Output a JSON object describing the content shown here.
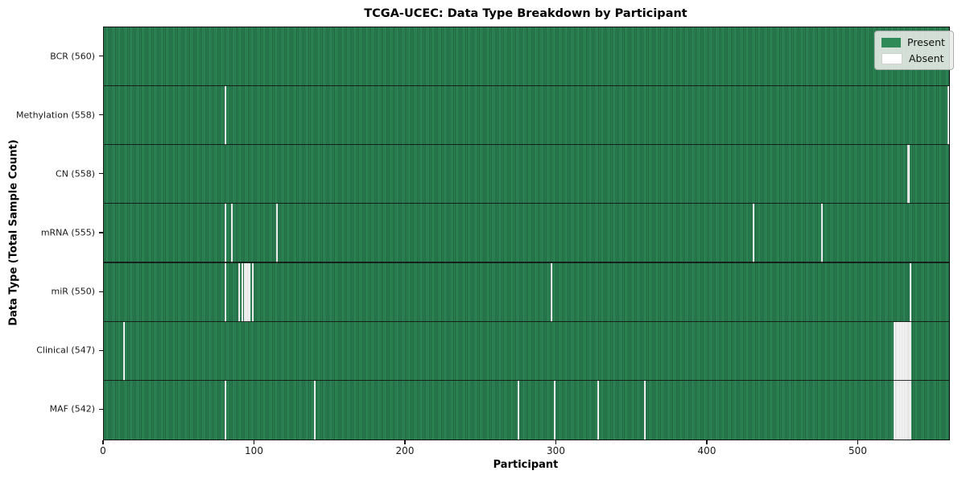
{
  "chart_data": {
    "type": "heatmap",
    "title": "TCGA-UCEC: Data Type Breakdown by Participant",
    "xlabel": "Participant",
    "ylabel": "Data Type (Total Sample Count)",
    "x_ticks": [
      0,
      100,
      200,
      300,
      400,
      500
    ],
    "xlim": [
      0,
      560
    ],
    "n_participants": 560,
    "grid": false,
    "legend_position": "upper right",
    "legend": [
      {
        "label": "Present",
        "color": "#2e8b57"
      },
      {
        "label": "Absent",
        "color": "#ffffff"
      }
    ],
    "colors": {
      "present": "#2e8b57",
      "present_edge": "#1f5f3e",
      "absent": "#ffffff",
      "absent_edge": "#bdbdbd",
      "frame": "#141414"
    },
    "rows": [
      {
        "label": "BCR (560)",
        "data_type": "BCR",
        "present_count": 560,
        "absent_participants": []
      },
      {
        "label": "Methylation (558)",
        "data_type": "Methylation",
        "present_count": 558,
        "absent_participants": [
          80,
          559
        ]
      },
      {
        "label": "CN (558)",
        "data_type": "CN",
        "present_count": 558,
        "absent_participants": [
          532,
          533
        ]
      },
      {
        "label": "mRNA (555)",
        "data_type": "mRNA",
        "present_count": 555,
        "absent_participants": [
          80,
          84,
          114,
          430,
          475
        ]
      },
      {
        "label": "miR (550)",
        "data_type": "miR",
        "present_count": 550,
        "absent_participants": [
          80,
          89,
          91,
          93,
          94,
          95,
          96,
          98,
          296,
          534
        ]
      },
      {
        "label": "Clinical (547)",
        "data_type": "Clinical",
        "present_count": 547,
        "absent_participants": [
          13,
          523,
          524,
          525,
          526,
          527,
          528,
          529,
          530,
          531,
          532,
          533,
          534
        ]
      },
      {
        "label": "MAF (542)",
        "data_type": "MAF",
        "present_count": 542,
        "absent_participants": [
          80,
          139,
          274,
          298,
          327,
          358,
          523,
          524,
          525,
          526,
          527,
          528,
          529,
          530,
          531,
          532,
          533,
          534
        ]
      }
    ]
  }
}
